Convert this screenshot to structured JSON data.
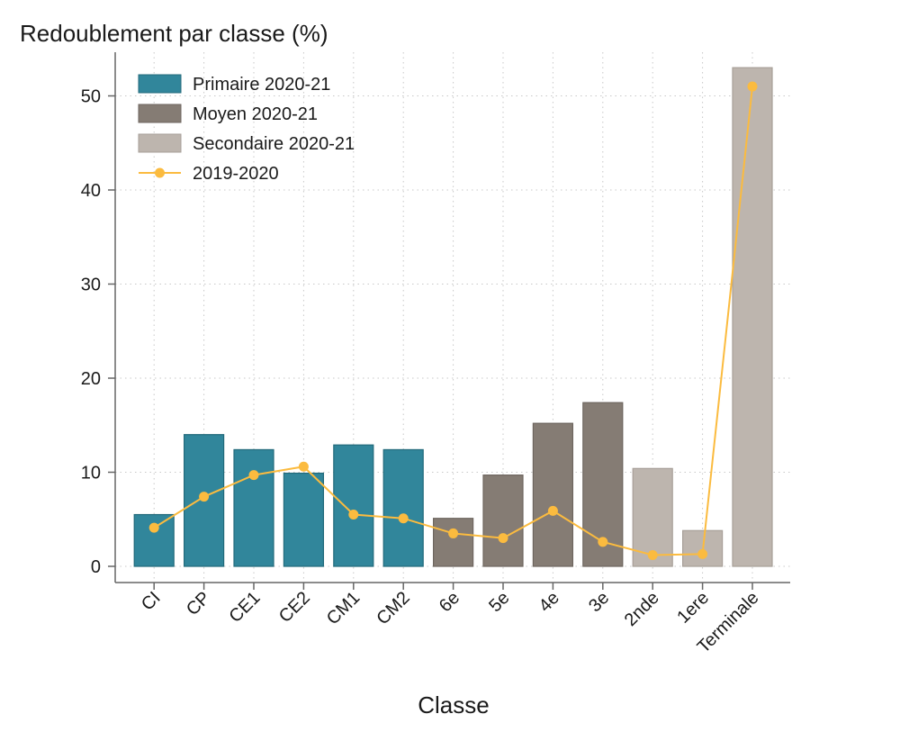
{
  "chart_data": {
    "type": "bar",
    "title": "Redoublement par classe (%)",
    "xlabel": "Classe",
    "ylabel": "",
    "ylim": [
      0,
      54
    ],
    "yticks": [
      0,
      10,
      20,
      30,
      40,
      50
    ],
    "grid": true,
    "legend_position": "top-left",
    "categories": [
      "CI",
      "CP",
      "CE1",
      "CE2",
      "CM1",
      "CM2",
      "6e",
      "5e",
      "4e",
      "3e",
      "2nde",
      "1ere",
      "Terminale"
    ],
    "series": [
      {
        "name": "Primaire 2020-21",
        "type": "bar",
        "color": "#31869b",
        "stroke": "#226a7b",
        "values": [
          5.5,
          14.0,
          12.4,
          9.9,
          12.9,
          12.4,
          null,
          null,
          null,
          null,
          null,
          null,
          null
        ]
      },
      {
        "name": "Moyen 2020-21",
        "type": "bar",
        "color": "#857c74",
        "stroke": "#6e665f",
        "values": [
          null,
          null,
          null,
          null,
          null,
          null,
          5.1,
          9.7,
          15.2,
          17.4,
          null,
          null,
          null
        ]
      },
      {
        "name": "Secondaire 2020-21",
        "type": "bar",
        "color": "#bdb5ae",
        "stroke": "#a79f98",
        "values": [
          null,
          null,
          null,
          null,
          null,
          null,
          null,
          null,
          null,
          null,
          10.4,
          3.8,
          53.0
        ]
      },
      {
        "name": "2019-2020",
        "type": "line",
        "color": "#fbbb3f",
        "values": [
          4.1,
          7.4,
          9.7,
          10.6,
          5.5,
          5.1,
          3.5,
          3.0,
          5.9,
          2.6,
          1.2,
          1.3,
          51.0
        ]
      }
    ]
  }
}
